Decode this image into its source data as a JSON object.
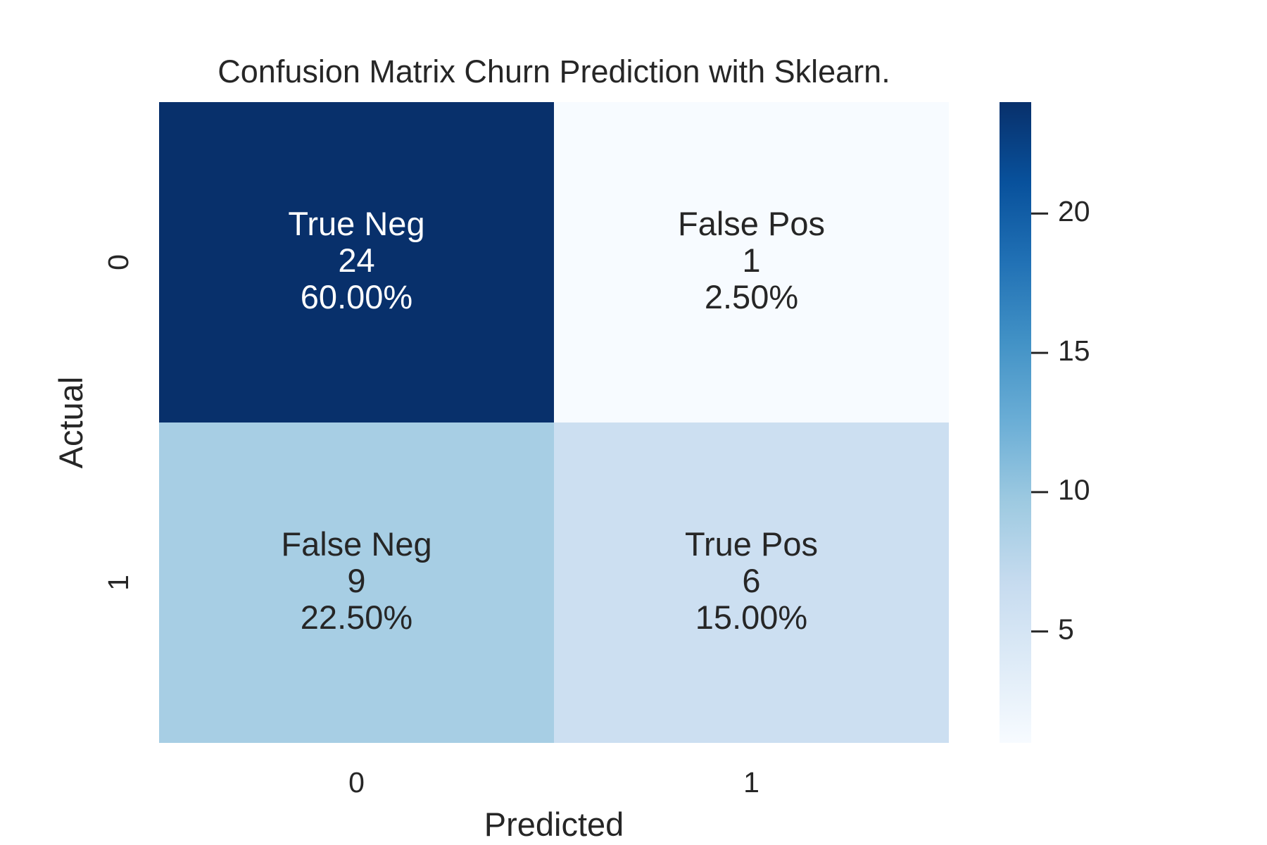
{
  "chart_data": {
    "type": "heatmap",
    "title": "Confusion Matrix Churn Prediction with Sklearn.",
    "xlabel": "Predicted",
    "ylabel": "Actual",
    "x_categories": [
      "0",
      "1"
    ],
    "y_categories": [
      "0",
      "1"
    ],
    "values": [
      [
        24,
        1
      ],
      [
        9,
        6
      ]
    ],
    "cell_labels": [
      [
        "True Neg",
        "False Pos"
      ],
      [
        "False Neg",
        "True Pos"
      ]
    ],
    "cell_percentages": [
      [
        "60.00%",
        "2.50%"
      ],
      [
        "22.50%",
        "15.00%"
      ]
    ],
    "colormap": "Blues",
    "colorbar": {
      "vmin": 1,
      "vmax": 24,
      "ticks": [
        5,
        10,
        15,
        20
      ]
    },
    "colors": {
      "light_text": "#ffffff",
      "dark_text": "#262626"
    }
  }
}
